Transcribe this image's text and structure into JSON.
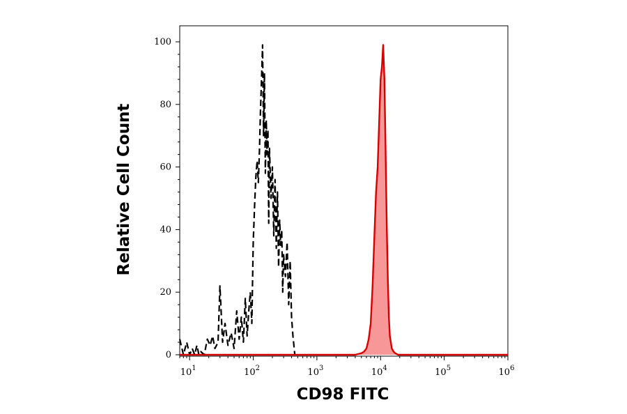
{
  "chart_data": {
    "type": "area",
    "xlabel": "CD98 FITC",
    "ylabel": "Relative Cell Count",
    "x_scale": "log",
    "xlim": [
      7,
      1000000
    ],
    "ylim": [
      0,
      100
    ],
    "x_ticks": [
      {
        "value": 10,
        "base": "10",
        "exp": "1"
      },
      {
        "value": 100,
        "base": "10",
        "exp": "2"
      },
      {
        "value": 1000,
        "base": "10",
        "exp": "3"
      },
      {
        "value": 10000,
        "base": "10",
        "exp": "4"
      },
      {
        "value": 100000,
        "base": "10",
        "exp": "5"
      },
      {
        "value": 1000000,
        "base": "10",
        "exp": "6"
      }
    ],
    "y_ticks": [
      0,
      20,
      40,
      60,
      80,
      100
    ],
    "grid": false,
    "legend": "none",
    "series": [
      {
        "style": "dashed",
        "color": "#000000",
        "fill": false,
        "x": [
          7,
          8,
          9,
          10,
          11,
          12,
          13,
          14,
          15,
          17,
          19,
          21,
          23,
          25,
          28,
          30,
          33,
          36,
          40,
          45,
          50,
          55,
          60,
          65,
          70,
          75,
          80,
          85,
          90,
          95,
          100,
          105,
          110,
          115,
          120,
          125,
          130,
          135,
          140,
          145,
          150,
          155,
          160,
          165,
          170,
          175,
          180,
          190,
          200,
          210,
          220,
          230,
          240,
          250,
          260,
          270,
          280,
          290,
          300,
          320,
          340,
          360,
          380,
          400,
          420,
          450
        ],
        "y": [
          5,
          0,
          4,
          0,
          2,
          0,
          3,
          0,
          1,
          0,
          5,
          3,
          6,
          2,
          4,
          22,
          4,
          10,
          3,
          7,
          2,
          14,
          5,
          12,
          4,
          18,
          6,
          14,
          20,
          10,
          36,
          48,
          57,
          62,
          55,
          65,
          78,
          88,
          99,
          70,
          90,
          58,
          75,
          64,
          72,
          42,
          66,
          50,
          60,
          38,
          56,
          34,
          52,
          28,
          43,
          35,
          40,
          20,
          32,
          25,
          36,
          16,
          30,
          12,
          6,
          0
        ]
      },
      {
        "style": "solid",
        "color": "#d60000",
        "fill": true,
        "fill_color": "#f79797",
        "x": [
          7,
          100,
          1000,
          4000,
          5000,
          5500,
          6000,
          6500,
          7000,
          7500,
          8000,
          8500,
          9000,
          9500,
          10000,
          10500,
          11000,
          11500,
          12000,
          12500,
          13000,
          13500,
          14000,
          15000,
          16000,
          17000,
          18000,
          19000,
          20000,
          25000,
          100000,
          1000000
        ],
        "y": [
          0,
          0,
          0,
          0,
          0.5,
          1,
          2,
          5,
          10,
          22,
          38,
          52,
          60,
          74,
          88,
          92,
          99,
          88,
          65,
          42,
          24,
          12,
          6,
          2,
          1,
          0.5,
          0.2,
          0,
          0,
          0,
          0,
          0
        ]
      }
    ]
  }
}
